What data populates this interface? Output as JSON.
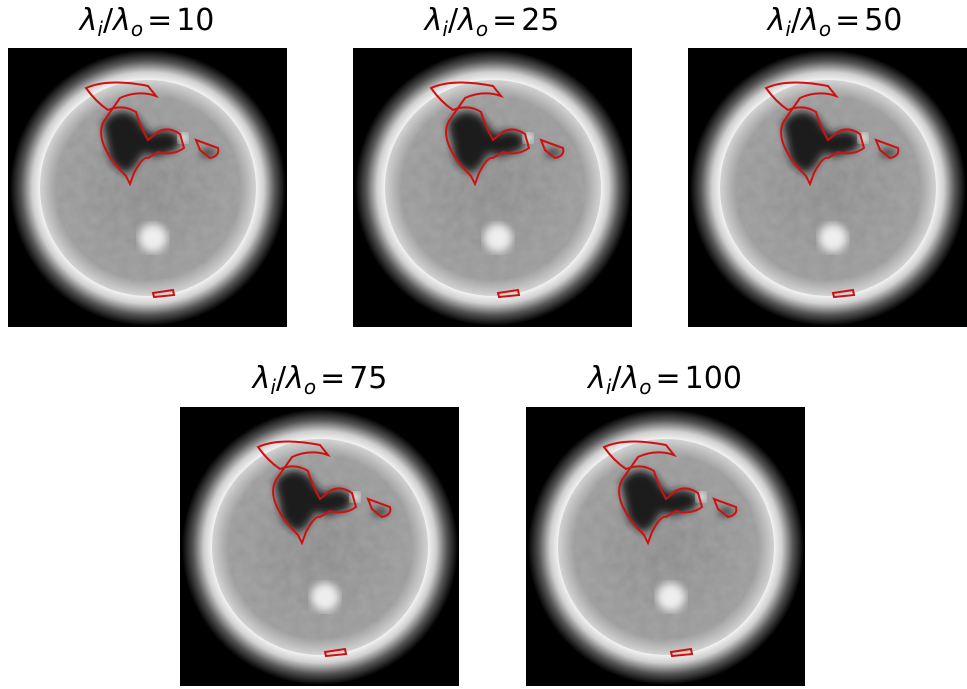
{
  "label": {
    "num": "λ",
    "num_sub": "i",
    "sep": "/",
    "den": "λ",
    "den_sub": "o",
    "eq": "="
  },
  "panels": [
    {
      "value": 10
    },
    {
      "value": 25
    },
    {
      "value": 50
    },
    {
      "value": 75
    },
    {
      "value": 100
    }
  ]
}
